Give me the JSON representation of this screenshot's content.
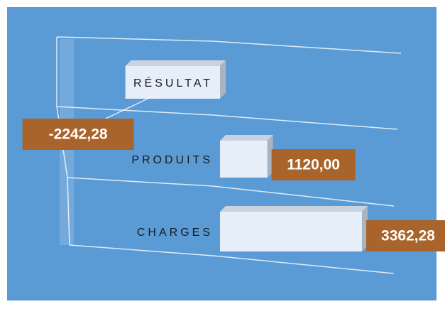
{
  "chart_data": {
    "type": "bar",
    "orientation": "horizontal",
    "categories": [
      "RÉSULTAT",
      "PRODUITS",
      "CHARGES"
    ],
    "values": [
      -2242.28,
      1120.0,
      3362.28
    ],
    "value_labels": [
      "-2242,28",
      "1120,00",
      "3362,28"
    ],
    "color": "#e6eefa",
    "label_color": "#a9642b"
  }
}
